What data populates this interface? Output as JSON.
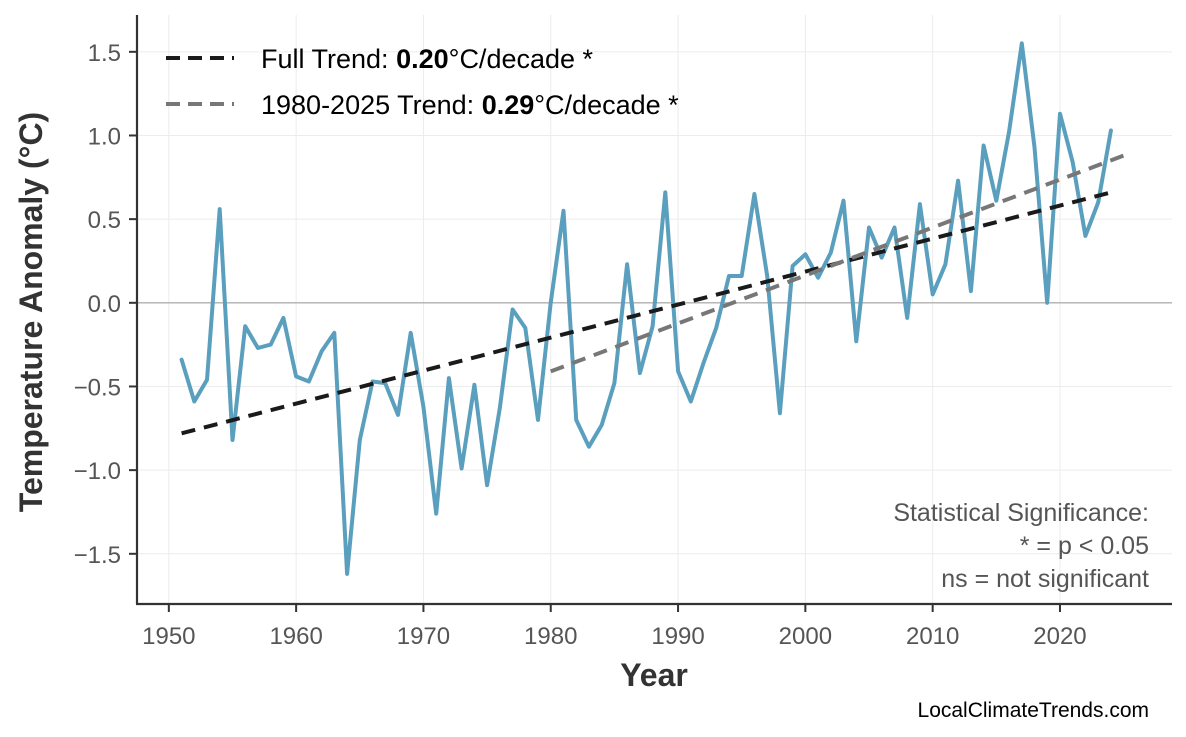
{
  "chart_data": {
    "type": "line",
    "xlabel": "Year",
    "ylabel": "Temperature Anomaly (°C)",
    "xlim": [
      1947.5,
      2028.8
    ],
    "ylim": [
      -1.8,
      1.72
    ],
    "xticks": [
      1950,
      1960,
      1970,
      1980,
      1990,
      2000,
      2010,
      2020
    ],
    "yticks": [
      -1.5,
      -1.0,
      -0.5,
      0.0,
      0.5,
      1.0,
      1.5
    ],
    "xtick_labels": [
      "1950",
      "1960",
      "1970",
      "1980",
      "1990",
      "2000",
      "2010",
      "2020"
    ],
    "ytick_labels": [
      "−1.5",
      "−1.0",
      "−0.5",
      "0.0",
      "0.5",
      "1.0",
      "1.5"
    ],
    "grid": true,
    "zero_line": true,
    "legend_position": "top-left",
    "series": [
      {
        "kind": "observed",
        "color": "#5a9fbd",
        "x": [
          1951,
          1952,
          1953,
          1954,
          1955,
          1956,
          1957,
          1958,
          1959,
          1960,
          1961,
          1962,
          1963,
          1964,
          1965,
          1966,
          1967,
          1968,
          1969,
          1970,
          1971,
          1972,
          1973,
          1974,
          1975,
          1976,
          1977,
          1978,
          1979,
          1980,
          1981,
          1982,
          1983,
          1984,
          1985,
          1986,
          1987,
          1988,
          1989,
          1990,
          1991,
          1992,
          1993,
          1994,
          1995,
          1996,
          1997,
          1998,
          1999,
          2000,
          2001,
          2002,
          2003,
          2004,
          2005,
          2006,
          2007,
          2008,
          2009,
          2010,
          2011,
          2012,
          2013,
          2014,
          2015,
          2016,
          2017,
          2018,
          2019,
          2020,
          2021,
          2022,
          2023,
          2024
        ],
        "y": [
          -0.34,
          -0.59,
          -0.46,
          0.56,
          -0.82,
          -0.14,
          -0.27,
          -0.25,
          -0.09,
          -0.44,
          -0.47,
          -0.29,
          -0.18,
          -1.62,
          -0.82,
          -0.47,
          -0.48,
          -0.67,
          -0.18,
          -0.62,
          -1.26,
          -0.45,
          -0.99,
          -0.49,
          -1.09,
          -0.63,
          -0.04,
          -0.15,
          -0.7,
          0.0,
          0.55,
          -0.7,
          -0.86,
          -0.73,
          -0.48,
          0.23,
          -0.42,
          -0.14,
          0.66,
          -0.41,
          -0.59,
          -0.36,
          -0.15,
          0.16,
          0.16,
          0.65,
          0.16,
          -0.66,
          0.22,
          0.29,
          0.15,
          0.3,
          0.61,
          -0.23,
          0.45,
          0.27,
          0.45,
          -0.09,
          0.59,
          0.05,
          0.23,
          0.73,
          0.07,
          0.94,
          0.61,
          1.02,
          1.55,
          0.93,
          0.0,
          1.13,
          0.84,
          0.4,
          0.6,
          1.03
        ]
      },
      {
        "kind": "trend",
        "name": "Full Trend:",
        "value_label": "0.20",
        "unit_label": "°C/decade *",
        "color": "#1a1a1a",
        "x": [
          1951,
          2024
        ],
        "y": [
          -0.78,
          0.66
        ]
      },
      {
        "kind": "trend",
        "name": "1980-2025 Trend:",
        "value_label": "0.29",
        "unit_label": "°C/decade *",
        "color": "#777777",
        "x": [
          1980,
          2025
        ],
        "y": [
          -0.41,
          0.88
        ]
      }
    ],
    "annotation": [
      "Statistical Significance:",
      "* = p < 0.05",
      "ns = not significant"
    ]
  },
  "footer": {
    "source": "LocalClimateTrends.com"
  }
}
